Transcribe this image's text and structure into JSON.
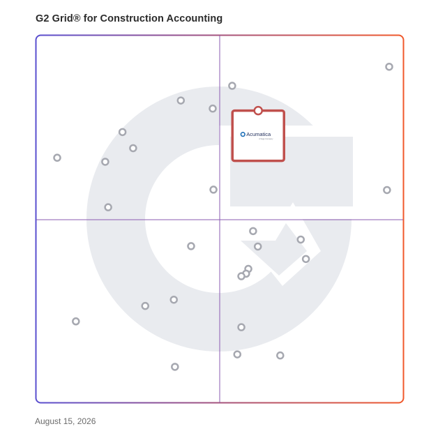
{
  "title": "G2 Grid® for Construction Accounting",
  "date": "August 15, 2026",
  "colors": {
    "frame_top_left": "#5a4fcf",
    "frame_top_right": "#f0582b",
    "frame_bottom_left": "#1f9ad6",
    "frame_bottom_right": "#7a2fa8",
    "divider": "#8a5bb0",
    "watermark": "#e9ebef",
    "dot": "#a6a8b0",
    "highlight": "#c0504d",
    "acumatica_blue": "#1d6fb8"
  },
  "chart_data": {
    "type": "scatter",
    "xlim": [
      0,
      1
    ],
    "ylim": [
      0,
      1
    ],
    "grid": "quadrants",
    "points": [
      {
        "x": 0.057,
        "y": 0.667
      },
      {
        "x": 0.188,
        "y": 0.656
      },
      {
        "x": 0.235,
        "y": 0.737
      },
      {
        "x": 0.264,
        "y": 0.693
      },
      {
        "x": 0.196,
        "y": 0.532
      },
      {
        "x": 0.394,
        "y": 0.823
      },
      {
        "x": 0.481,
        "y": 0.801
      },
      {
        "x": 0.534,
        "y": 0.863
      },
      {
        "x": 0.625,
        "y": 0.766
      },
      {
        "x": 0.962,
        "y": 0.915
      },
      {
        "x": 0.483,
        "y": 0.58
      },
      {
        "x": 0.956,
        "y": 0.579
      },
      {
        "x": 0.591,
        "y": 0.467
      },
      {
        "x": 0.604,
        "y": 0.425
      },
      {
        "x": 0.422,
        "y": 0.426
      },
      {
        "x": 0.721,
        "y": 0.444
      },
      {
        "x": 0.735,
        "y": 0.391
      },
      {
        "x": 0.578,
        "y": 0.364
      },
      {
        "x": 0.572,
        "y": 0.351
      },
      {
        "x": 0.559,
        "y": 0.344
      },
      {
        "x": 0.375,
        "y": 0.28
      },
      {
        "x": 0.297,
        "y": 0.263
      },
      {
        "x": 0.108,
        "y": 0.221
      },
      {
        "x": 0.559,
        "y": 0.205
      },
      {
        "x": 0.548,
        "y": 0.131
      },
      {
        "x": 0.665,
        "y": 0.128
      },
      {
        "x": 0.378,
        "y": 0.097
      }
    ],
    "highlight": {
      "x": 0.605,
      "y": 0.725,
      "label": "Acumatica",
      "sublabel": "A Sage Company"
    }
  }
}
